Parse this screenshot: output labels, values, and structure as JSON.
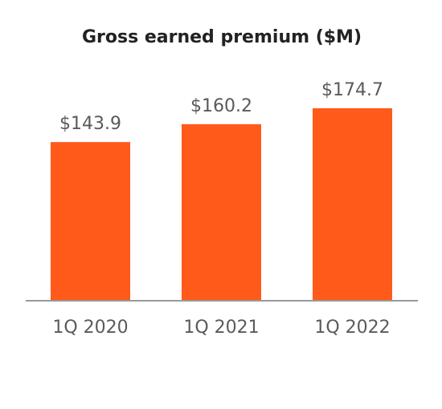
{
  "chart_data": {
    "type": "bar",
    "title": "Gross earned premium ($M)",
    "categories": [
      "1Q 2020",
      "1Q 2021",
      "1Q 2022"
    ],
    "values": [
      143.9,
      160.2,
      174.7
    ],
    "value_labels": [
      "$143.9",
      "$160.2",
      "$174.7"
    ],
    "color": "#ff5a1a"
  }
}
